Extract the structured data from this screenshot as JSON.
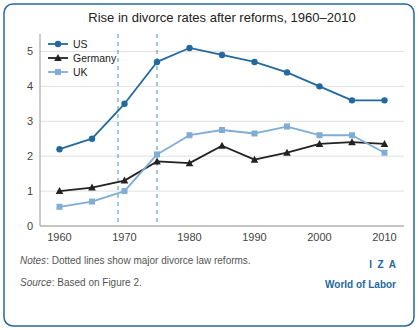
{
  "chart_data": {
    "type": "line",
    "title": "Rise in divorce rates after reforms, 1960–2010",
    "x": [
      1960,
      1965,
      1970,
      1975,
      1980,
      1985,
      1990,
      1995,
      2000,
      2005,
      2010
    ],
    "series": [
      {
        "name": "US",
        "color": "#2369a0",
        "marker": "circle",
        "values": [
          2.2,
          2.5,
          3.5,
          4.7,
          5.1,
          4.9,
          4.7,
          4.4,
          4.0,
          3.6,
          3.6
        ]
      },
      {
        "name": "Germany",
        "color": "#222222",
        "marker": "triangle",
        "values": [
          1.0,
          1.1,
          1.3,
          1.85,
          1.8,
          2.3,
          1.9,
          2.1,
          2.35,
          2.4,
          2.35
        ]
      },
      {
        "name": "UK",
        "color": "#7fadd4",
        "marker": "square",
        "values": [
          0.55,
          0.7,
          1.0,
          2.05,
          2.6,
          2.75,
          2.65,
          2.85,
          2.6,
          2.6,
          2.1
        ]
      }
    ],
    "reform_lines": {
      "values": [
        1969,
        1975
      ],
      "color": "#60a8c8",
      "line_style": "dashed"
    },
    "xlim": [
      1957,
      2013
    ],
    "xticks": [
      1960,
      1970,
      1980,
      1990,
      2000,
      2010
    ],
    "ylim": [
      0,
      5.5
    ],
    "yticks": [
      0,
      1,
      2,
      3,
      4,
      5
    ],
    "grid": true,
    "legend": "upper left",
    "notes": {
      "label": "Notes",
      "text": ": Dotted lines show major divorce law reforms."
    },
    "source": {
      "label": "Source",
      "text": ": Based on Figure 2."
    },
    "brand": {
      "lines": [
        "I  Z  A",
        "World of Labor"
      ],
      "color": "#2369a0"
    }
  }
}
